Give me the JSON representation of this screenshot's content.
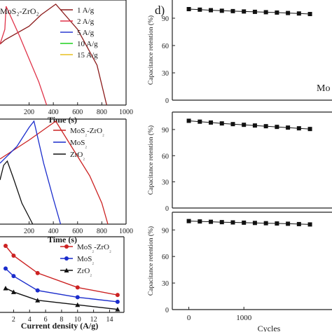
{
  "panels": {
    "top_left_label_cut": "MoS₂-ZrO₂",
    "panel_d_letter": "d)"
  },
  "chart_data": [
    {
      "id": "gcd_rates",
      "type": "line",
      "panel": "a (cropped)",
      "title": "MoS₂-ZrO₂",
      "xlabel": "Time (s)",
      "ylabel": "",
      "xlim": [
        -40,
        1000
      ],
      "ylim": [
        0,
        1.0
      ],
      "x_ticks": [
        200,
        400,
        600,
        800,
        1000
      ],
      "legend_position": "top-right",
      "series": [
        {
          "name": "1 A/g",
          "color": "#8b1a1a",
          "x": [
            -40,
            0,
            200,
            300,
            420,
            600,
            760,
            840
          ],
          "y": [
            0.58,
            0.62,
            0.75,
            0.86,
            0.96,
            0.72,
            0.38,
            0.0
          ]
        },
        {
          "name": "2 A/g",
          "color": "#e0344a",
          "x": [
            -40,
            0,
            10,
            120,
            200,
            280,
            345
          ],
          "y": [
            0.58,
            0.72,
            0.94,
            0.66,
            0.44,
            0.22,
            0.0
          ]
        },
        {
          "name": "5 A/g",
          "color": "#2b3bd0",
          "x": [],
          "y": []
        },
        {
          "name": "10 A/g",
          "color": "#1fd11f",
          "x": [],
          "y": []
        },
        {
          "name": "15 A/g",
          "color": "#e8c020",
          "x": [],
          "y": []
        }
      ]
    },
    {
      "id": "gcd_compare",
      "type": "line",
      "panel": "b (cropped)",
      "xlabel": "Time (s)",
      "xlim": [
        -40,
        1000
      ],
      "ylim": [
        0,
        1.0
      ],
      "x_ticks": [
        200,
        400,
        600,
        800,
        1000
      ],
      "legend_position": "top-right",
      "series": [
        {
          "name": "MoS₂-ZrO₂",
          "color": "#cc2222",
          "x": [
            -40,
            200,
            420,
            560,
            700,
            800,
            850
          ],
          "y": [
            0.62,
            0.8,
            0.98,
            0.72,
            0.46,
            0.2,
            0.0
          ]
        },
        {
          "name": "MoS₂",
          "color": "#1a2ccc",
          "x": [
            -40,
            100,
            200,
            240,
            320,
            400,
            460
          ],
          "y": [
            0.58,
            0.74,
            0.92,
            0.98,
            0.58,
            0.24,
            0.0
          ]
        },
        {
          "name": "ZrO₂",
          "color": "#111111",
          "x": [
            -40,
            -10,
            20,
            70,
            140,
            230
          ],
          "y": [
            0.42,
            0.56,
            0.6,
            0.44,
            0.2,
            0.0
          ]
        }
      ]
    },
    {
      "id": "rate_capability",
      "type": "line",
      "panel": "c (cropped)",
      "xlabel": "Current density (A/g)",
      "xlim": [
        0.3,
        15.8
      ],
      "ylim": [
        0,
        1.0
      ],
      "x_ticks": [
        2,
        4,
        6,
        8,
        10,
        12,
        14
      ],
      "legend_position": "top-right",
      "series": [
        {
          "name": "MoS₂-ZrO₂",
          "color": "#cc2222",
          "marker": "circle",
          "x": [
            1,
            2,
            5,
            10,
            15
          ],
          "y": [
            0.88,
            0.75,
            0.52,
            0.33,
            0.23
          ]
        },
        {
          "name": "MoS₂",
          "color": "#1a2ccc",
          "marker": "circle",
          "x": [
            1,
            2,
            5,
            10,
            15
          ],
          "y": [
            0.58,
            0.48,
            0.29,
            0.2,
            0.14
          ]
        },
        {
          "name": "ZrO₂",
          "color": "#111111",
          "marker": "triangle",
          "x": [
            1,
            2,
            5,
            10,
            15
          ],
          "y": [
            0.32,
            0.27,
            0.16,
            0.1,
            0.04
          ]
        }
      ]
    },
    {
      "id": "retention_top",
      "type": "line",
      "panel": "d top",
      "ylabel": "Capacitance retention (%)",
      "xlim": [
        -300,
        2600
      ],
      "ylim": [
        0,
        110
      ],
      "y_ticks": [
        0,
        30,
        60,
        90
      ],
      "cut_label": "Mo",
      "series": [
        {
          "name": "",
          "color": "#111111",
          "marker": "square",
          "x": [
            0,
            200,
            400,
            600,
            800,
            1000,
            1200,
            1400,
            1600,
            1800,
            2000,
            2200
          ],
          "y": [
            100,
            99.4,
            98.8,
            98.2,
            97.8,
            97.4,
            97,
            96.6,
            96.2,
            95.7,
            95.2,
            94.6
          ]
        }
      ]
    },
    {
      "id": "retention_middle",
      "type": "line",
      "panel": "d middle",
      "ylabel": "Capacitance retention (%)",
      "xlim": [
        -300,
        2600
      ],
      "ylim": [
        0,
        110
      ],
      "y_ticks": [
        0,
        30,
        60,
        90
      ],
      "series": [
        {
          "name": "",
          "color": "#111111",
          "marker": "square",
          "x": [
            0,
            200,
            400,
            600,
            800,
            1000,
            1200,
            1400,
            1600,
            1800,
            2000,
            2200
          ],
          "y": [
            100,
            99,
            98,
            97,
            96.2,
            95.4,
            94.6,
            93.8,
            93,
            92.2,
            91.4,
            90.6
          ]
        }
      ]
    },
    {
      "id": "retention_bottom",
      "type": "line",
      "panel": "d bottom",
      "ylabel": "Capacitance retention (%)",
      "xlabel": "Cycles",
      "xlim": [
        -300,
        2600
      ],
      "ylim": [
        0,
        110
      ],
      "y_ticks": [
        0,
        30,
        60,
        90
      ],
      "x_ticks": [
        0,
        1000
      ],
      "series": [
        {
          "name": "",
          "color": "#111111",
          "marker": "square",
          "x": [
            0,
            200,
            400,
            600,
            800,
            1000,
            1200,
            1400,
            1600,
            1800,
            2000,
            2200
          ],
          "y": [
            100,
            99.6,
            99.2,
            98.8,
            98.5,
            98.2,
            97.9,
            97.6,
            97.3,
            97,
            96.6,
            96.2
          ]
        }
      ]
    }
  ]
}
